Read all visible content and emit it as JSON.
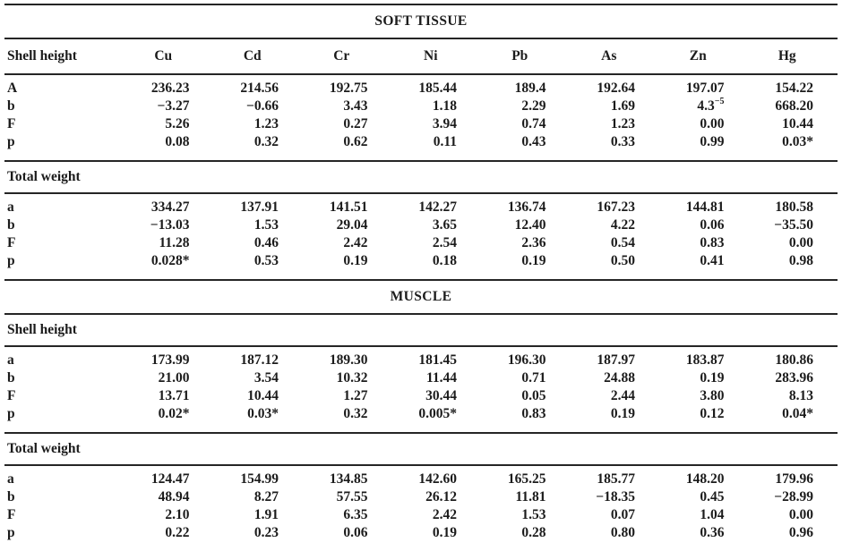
{
  "colors": {
    "text": "#1b1b1b",
    "background": "#ffffff",
    "rule": "#252525"
  },
  "table": {
    "col_headers": {
      "label_col": "Shell height",
      "metals": [
        "Cu",
        "Cd",
        "Cr",
        "Ni",
        "Pb",
        "As",
        "Zn",
        "Hg"
      ]
    },
    "sections": [
      {
        "title": "SOFT TISSUE",
        "blocks": [
          {
            "heading": "Shell height",
            "rows": [
              {
                "label": "A",
                "values": [
                  "236.23",
                  "214.56",
                  "192.75",
                  "185.44",
                  "189.4",
                  "192.64",
                  "197.07",
                  "154.22"
                ]
              },
              {
                "label": "b",
                "values": [
                  "−3.27",
                  "−0.66",
                  "3.43",
                  "1.18",
                  "2.29",
                  "1.69",
                  "4.3",
                  "668.20"
                ],
                "zn_exponent": "−5"
              },
              {
                "label": "F",
                "values": [
                  "5.26",
                  "1.23",
                  "0.27",
                  "3.94",
                  "0.74",
                  "1.23",
                  "0.00",
                  "10.44"
                ]
              },
              {
                "label": "p",
                "values": [
                  "0.08",
                  "0.32",
                  "0.62",
                  "0.11",
                  "0.43",
                  "0.33",
                  "0.99",
                  "0.03*"
                ]
              }
            ]
          },
          {
            "heading": "Total weight",
            "rows": [
              {
                "label": "a",
                "values": [
                  "334.27",
                  "137.91",
                  "141.51",
                  "142.27",
                  "136.74",
                  "167.23",
                  "144.81",
                  "180.58"
                ]
              },
              {
                "label": "b",
                "values": [
                  "−13.03",
                  "1.53",
                  "29.04",
                  "3.65",
                  "12.40",
                  "4.22",
                  "0.06",
                  "−35.50"
                ]
              },
              {
                "label": "F",
                "values": [
                  "11.28",
                  "0.46",
                  "2.42",
                  "2.54",
                  "2.36",
                  "0.54",
                  "0.83",
                  "0.00"
                ]
              },
              {
                "label": "p",
                "values": [
                  "0.028*",
                  "0.53",
                  "0.19",
                  "0.18",
                  "0.19",
                  "0.50",
                  "0.41",
                  "0.98"
                ]
              }
            ]
          }
        ]
      },
      {
        "title": "MUSCLE",
        "blocks": [
          {
            "heading": "Shell height",
            "rows": [
              {
                "label": "a",
                "values": [
                  "173.99",
                  "187.12",
                  "189.30",
                  "181.45",
                  "196.30",
                  "187.97",
                  "183.87",
                  "180.86"
                ]
              },
              {
                "label": "b",
                "values": [
                  "21.00",
                  "3.54",
                  "10.32",
                  "11.44",
                  "0.71",
                  "24.88",
                  "0.19",
                  "283.96"
                ]
              },
              {
                "label": "F",
                "values": [
                  "13.71",
                  "10.44",
                  "1.27",
                  "30.44",
                  "0.05",
                  "2.44",
                  "3.80",
                  "8.13"
                ]
              },
              {
                "label": "p",
                "values": [
                  "0.02*",
                  "0.03*",
                  "0.32",
                  "0.005*",
                  "0.83",
                  "0.19",
                  "0.12",
                  "0.04*"
                ]
              }
            ]
          },
          {
            "heading": "Total weight",
            "rows": [
              {
                "label": "a",
                "values": [
                  "124.47",
                  "154.99",
                  "134.85",
                  "142.60",
                  "165.25",
                  "185.77",
                  "148.20",
                  "179.96"
                ]
              },
              {
                "label": "b",
                "values": [
                  "48.94",
                  "8.27",
                  "57.55",
                  "26.12",
                  "11.81",
                  "−18.35",
                  "0.45",
                  "−28.99"
                ]
              },
              {
                "label": "F",
                "values": [
                  "2.10",
                  "1.91",
                  "6.35",
                  "2.42",
                  "1.53",
                  "0.07",
                  "1.04",
                  "0.00"
                ]
              },
              {
                "label": "p",
                "values": [
                  "0.22",
                  "0.23",
                  "0.06",
                  "0.19",
                  "0.28",
                  "0.80",
                  "0.36",
                  "0.96"
                ]
              }
            ]
          }
        ]
      }
    ]
  }
}
